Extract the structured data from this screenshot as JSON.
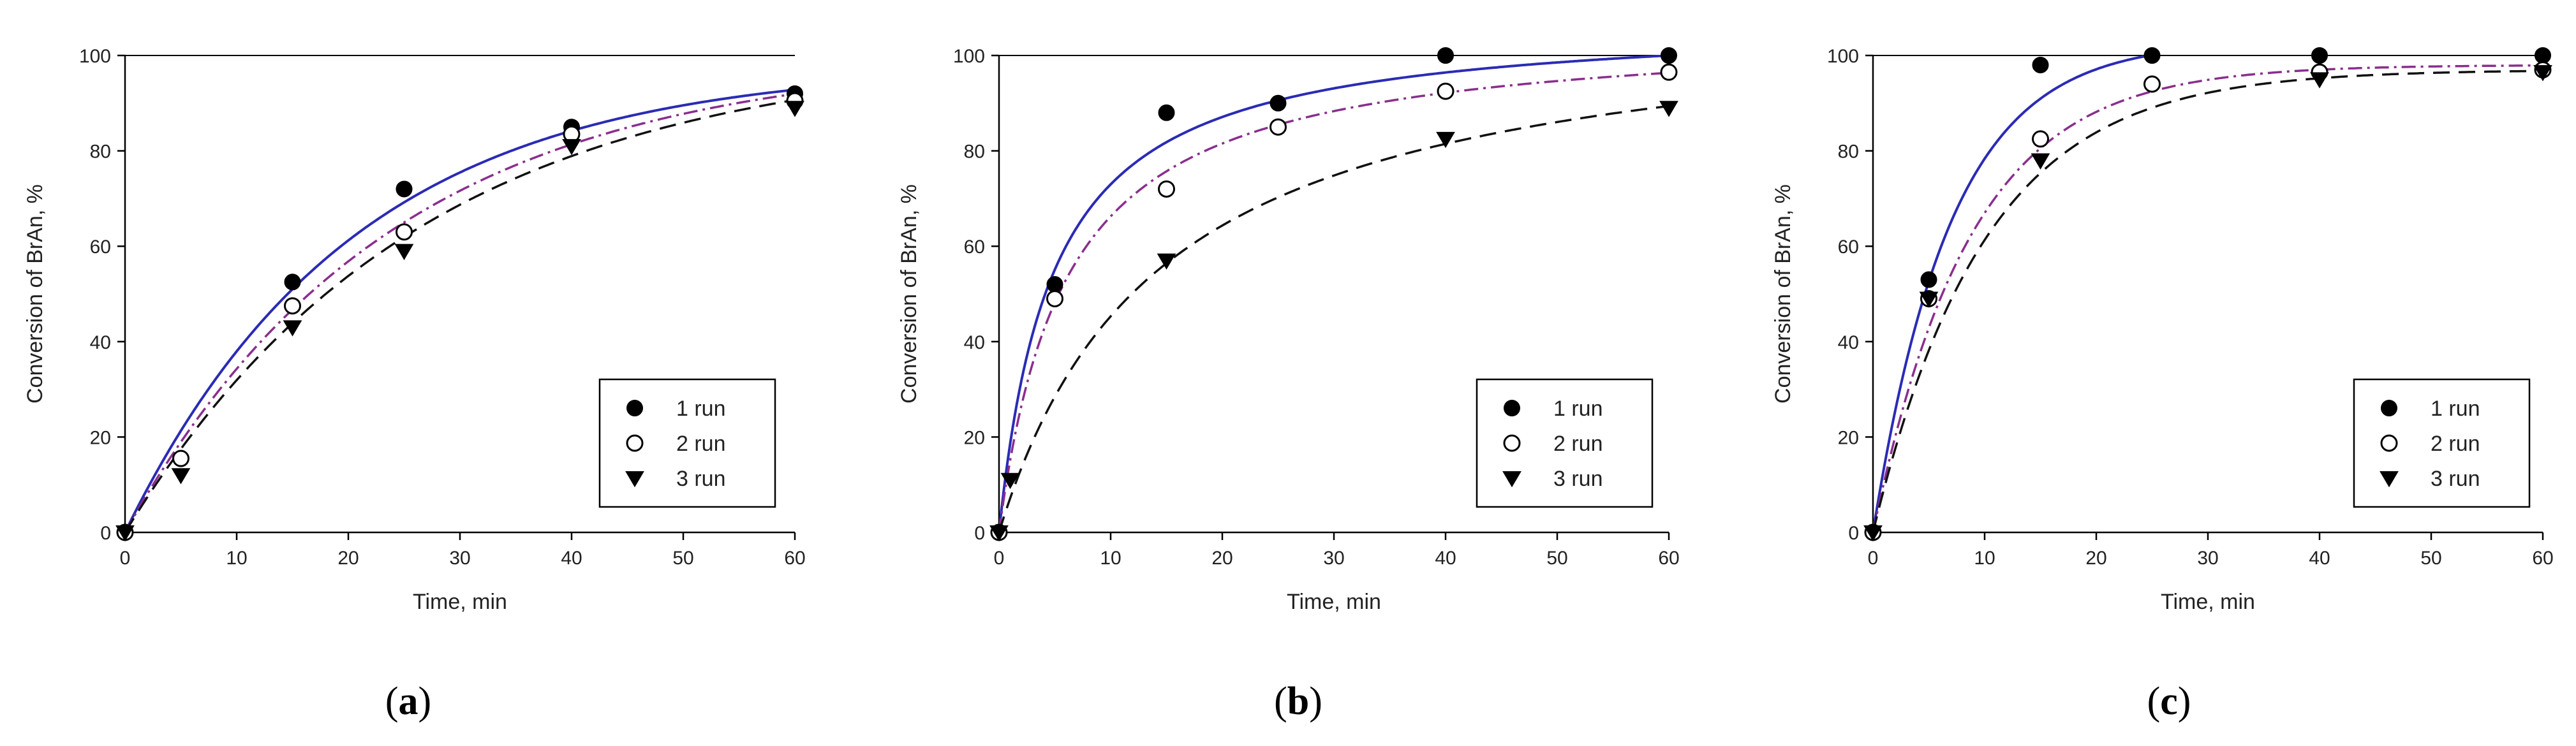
{
  "colors": {
    "run1_line": "#2b2bb5",
    "run2_line": "#8a2e8e",
    "run3_line": "#111111",
    "marker": "#000000",
    "axis": "#000000"
  },
  "chart_data": [
    {
      "type": "scatter",
      "panel_label": "a",
      "xlabel": "Time, min",
      "ylabel": "Conversion of BrAn, %",
      "xlim": [
        0,
        60
      ],
      "ylim": [
        0,
        100
      ],
      "xticks": [
        0,
        10,
        20,
        30,
        40,
        50,
        60
      ],
      "yticks": [
        0,
        20,
        40,
        60,
        80,
        100
      ],
      "legend_position": "bottom-right",
      "series": [
        {
          "name": "1 run",
          "marker": "filled-circle",
          "line": "solid",
          "x": [
            0,
            15,
            25,
            40,
            60
          ],
          "y": [
            0,
            52.5,
            72,
            85,
            92
          ],
          "fit": {
            "model": "first-order",
            "k": 0.049,
            "ymax": 98
          }
        },
        {
          "name": "2 run",
          "marker": "open-circle",
          "line": "dash-dot",
          "x": [
            0,
            5,
            15,
            25,
            40,
            60
          ],
          "y": [
            0,
            15.5,
            47.5,
            63,
            83.5,
            90.5
          ],
          "fit": {
            "model": "first-order",
            "k": 0.042,
            "ymax": 100
          }
        },
        {
          "name": "3 run",
          "marker": "triangle-down",
          "line": "dashed",
          "x": [
            0,
            5,
            15,
            25,
            40,
            60
          ],
          "y": [
            0,
            12,
            43,
            59,
            81,
            89
          ],
          "fit": {
            "model": "first-order",
            "k": 0.038,
            "ymax": 101
          }
        }
      ]
    },
    {
      "type": "scatter",
      "panel_label": "b",
      "xlabel": "Time, min",
      "ylabel": "Conversion of BrAn, %",
      "xlim": [
        0,
        60
      ],
      "ylim": [
        0,
        100
      ],
      "xticks": [
        0,
        10,
        20,
        30,
        40,
        50,
        60
      ],
      "yticks": [
        0,
        20,
        40,
        60,
        80,
        100
      ],
      "legend_position": "bottom-right",
      "series": [
        {
          "name": "1 run",
          "marker": "filled-circle",
          "line": "solid",
          "x": [
            0,
            5,
            15,
            25,
            40,
            60
          ],
          "y": [
            0,
            52,
            88,
            90,
            100,
            100
          ],
          "fit": {
            "model": "hyperbolic",
            "a": 108,
            "b": 4.8
          }
        },
        {
          "name": "2 run",
          "marker": "open-circle",
          "line": "dash-dot",
          "x": [
            0,
            5,
            15,
            25,
            40,
            60
          ],
          "y": [
            0,
            49,
            72,
            85,
            92.5,
            96.5
          ],
          "fit": {
            "model": "hyperbolic",
            "a": 106,
            "b": 6
          }
        },
        {
          "name": "3 run",
          "marker": "triangle-down",
          "line": "dashed",
          "x": [
            0,
            1,
            15,
            40,
            60
          ],
          "y": [
            0,
            11,
            57,
            82.5,
            89
          ],
          "fit": {
            "model": "hyperbolic",
            "a": 111,
            "b": 14.5
          }
        }
      ]
    },
    {
      "type": "scatter",
      "panel_label": "c",
      "xlabel": "Time, min",
      "ylabel": "Conversion of BrAn, %",
      "xlim": [
        0,
        60
      ],
      "ylim": [
        0,
        100
      ],
      "xticks": [
        0,
        10,
        20,
        30,
        40,
        50,
        60
      ],
      "yticks": [
        0,
        20,
        40,
        60,
        80,
        100
      ],
      "legend_position": "bottom-right",
      "series": [
        {
          "name": "1 run",
          "marker": "filled-circle",
          "line": "solid",
          "x": [
            0,
            5,
            15,
            25,
            40,
            60
          ],
          "y": [
            0,
            53,
            98,
            100,
            100,
            100
          ],
          "fit": {
            "model": "first-order",
            "k": 0.143,
            "ymax": 103
          }
        },
        {
          "name": "2 run",
          "marker": "open-circle",
          "line": "dash-dot",
          "x": [
            0,
            5,
            15,
            25,
            40,
            60
          ],
          "y": [
            0,
            49,
            82.5,
            94,
            96.5,
            97
          ],
          "fit": {
            "model": "first-order",
            "k": 0.115,
            "ymax": 98
          }
        },
        {
          "name": "3 run",
          "marker": "triangle-down",
          "line": "dashed",
          "x": [
            0,
            5,
            15,
            40,
            60
          ],
          "y": [
            0,
            49,
            78,
            95,
            96.5
          ],
          "fit": {
            "model": "first-order",
            "k": 0.1,
            "ymax": 97
          }
        }
      ]
    }
  ]
}
